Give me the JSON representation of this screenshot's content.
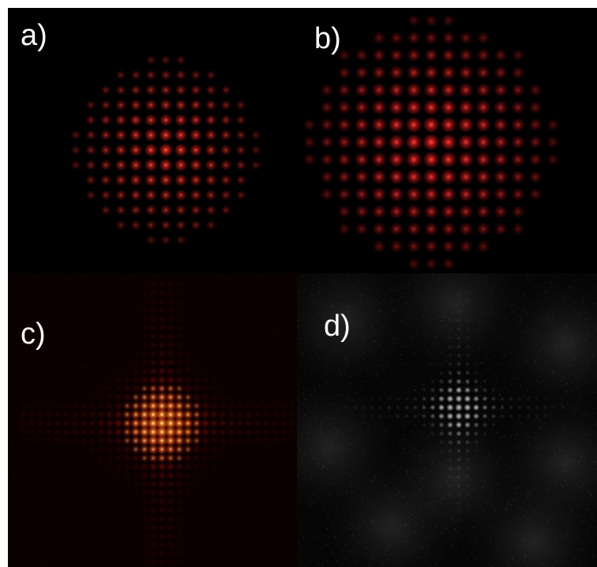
{
  "figure": {
    "panels": [
      {
        "id": "a",
        "label": "a)",
        "palette": "red",
        "pattern": "square-lattice"
      },
      {
        "id": "b",
        "label": "b)",
        "palette": "red",
        "pattern": "square-lattice"
      },
      {
        "id": "c",
        "label": "c)",
        "palette": "red-yellow-heat",
        "pattern": "cross-shaped"
      },
      {
        "id": "d",
        "label": "d)",
        "palette": "grayscale",
        "pattern": "cross-shaped"
      }
    ]
  },
  "colors": {
    "background": "#ffffff",
    "panel_background": "#000000",
    "label": "#ffffff",
    "red": "#ff2020",
    "heat_core": "#fff2a0",
    "gray_spot": "#ffffff"
  }
}
